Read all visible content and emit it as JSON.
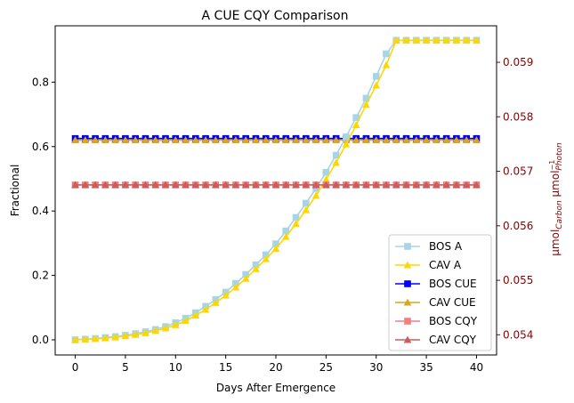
{
  "chart_data": {
    "type": "line",
    "title": "A CUE CQY Comparison",
    "xlabel": "Days After Emergence",
    "ylabel_left": "Fractional",
    "ylabel_right": {
      "base1": "μmol",
      "sub1": "Carbon",
      "base2": " μmol",
      "sub2": "Photon",
      "sup2": "−1"
    },
    "xlim": [
      -2,
      42
    ],
    "ylim_left": [
      -0.047,
      0.975
    ],
    "ylim_right": [
      0.05363,
      0.05967
    ],
    "x_ticks": [
      0,
      5,
      10,
      15,
      20,
      25,
      30,
      35,
      40
    ],
    "y_ticks_left": [
      0.0,
      0.2,
      0.4,
      0.6,
      0.8
    ],
    "y_ticks_right": [
      0.054,
      0.055,
      0.056,
      0.057,
      0.058,
      0.059
    ],
    "right_axis_color": "#8b0000",
    "legend_placement": "lower-right",
    "x": [
      0,
      1,
      2,
      3,
      4,
      5,
      6,
      7,
      8,
      9,
      10,
      11,
      12,
      13,
      14,
      15,
      16,
      17,
      18,
      19,
      20,
      21,
      22,
      23,
      24,
      25,
      26,
      27,
      28,
      29,
      30,
      31,
      32,
      33,
      34,
      35,
      36,
      37,
      38,
      39,
      40
    ],
    "series": [
      {
        "name": "BOS A",
        "axis": "left",
        "color": "#a6d4e8",
        "marker": "square",
        "values": [
          0.0,
          0.002,
          0.004,
          0.007,
          0.01,
          0.014,
          0.019,
          0.025,
          0.032,
          0.041,
          0.053,
          0.067,
          0.084,
          0.104,
          0.125,
          0.148,
          0.175,
          0.203,
          0.233,
          0.264,
          0.298,
          0.338,
          0.38,
          0.424,
          0.47,
          0.52,
          0.573,
          0.63,
          0.69,
          0.75,
          0.818,
          0.888,
          0.93,
          0.93,
          0.93,
          0.93,
          0.93,
          0.93,
          0.93,
          0.93,
          0.93
        ]
      },
      {
        "name": "CAV A",
        "axis": "left",
        "color": "#ffd700",
        "marker": "triangle",
        "values": [
          0.0,
          0.001,
          0.003,
          0.005,
          0.008,
          0.012,
          0.016,
          0.021,
          0.028,
          0.036,
          0.046,
          0.059,
          0.076,
          0.094,
          0.115,
          0.138,
          0.163,
          0.19,
          0.22,
          0.251,
          0.283,
          0.32,
          0.36,
          0.403,
          0.448,
          0.498,
          0.55,
          0.607,
          0.667,
          0.73,
          0.79,
          0.853,
          0.93,
          0.93,
          0.93,
          0.93,
          0.93,
          0.93,
          0.93,
          0.93,
          0.93
        ]
      },
      {
        "name": "BOS CUE",
        "axis": "left",
        "color": "#0000ff",
        "marker": "square",
        "constant": 0.625
      },
      {
        "name": "CAV CUE",
        "axis": "left",
        "color": "#daa520",
        "marker": "triangle",
        "constant": 0.62
      },
      {
        "name": "BOS CQY",
        "axis": "right",
        "color": "#f08080",
        "marker": "square",
        "constant": 0.05675
      },
      {
        "name": "CAV CQY",
        "axis": "right",
        "color": "#cd5c5c",
        "marker": "triangle",
        "constant": 0.05675
      }
    ]
  }
}
